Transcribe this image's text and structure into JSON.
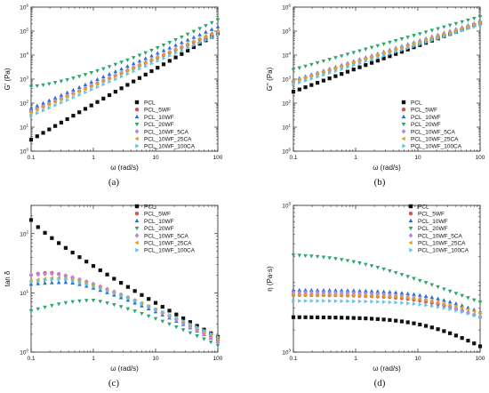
{
  "chart_data": [
    {
      "type": "scatter",
      "panel_label": "(a)",
      "xlabel": "ω (rad/s)",
      "ylabel": "G' (Pa)",
      "x_scale": "log",
      "y_scale": "log",
      "xlim": [
        0.1,
        100
      ],
      "ylim": [
        1,
        1000000
      ],
      "x_ticks": [
        {
          "v": 0.1,
          "t": "0.1"
        },
        {
          "v": 1,
          "t": "1"
        },
        {
          "v": 10,
          "t": "10"
        },
        {
          "v": 100,
          "t": "100"
        }
      ],
      "y_ticks": [
        {
          "v": 1,
          "base": "10",
          "exp": "0"
        },
        {
          "v": 10,
          "base": "10",
          "exp": "1"
        },
        {
          "v": 100,
          "base": "10",
          "exp": "2"
        },
        {
          "v": 1000,
          "base": "10",
          "exp": "3"
        },
        {
          "v": 10000,
          "base": "10",
          "exp": "4"
        },
        {
          "v": 100000,
          "base": "10",
          "exp": "5"
        },
        {
          "v": 1000000,
          "base": "10",
          "exp": "6"
        }
      ],
      "legend_position": "lower-right",
      "series": [
        {
          "name": "PCL",
          "color": "#111111",
          "marker": "square",
          "start": 3,
          "end": 80000,
          "power": 1.0
        },
        {
          "name": "PCL_5WF",
          "color": "#d9534f",
          "marker": "circle",
          "start": 45,
          "end": 90000,
          "power": 1.0
        },
        {
          "name": "PCL_10WF",
          "color": "#2c6fd6",
          "marker": "triangle-up",
          "start": 60,
          "end": 150000,
          "power": 1.0
        },
        {
          "name": "PCL_20WF",
          "color": "#2aa86b",
          "marker": "triangle-down",
          "start": 500,
          "end": 300000,
          "power": 1.4
        },
        {
          "name": "PCL_10WF_5CA",
          "color": "#b58ae0",
          "marker": "diamond",
          "start": 45,
          "end": 100000,
          "power": 1.0
        },
        {
          "name": "PCL_10WF_25CA",
          "color": "#e3a21a",
          "marker": "triangle-left",
          "start": 40,
          "end": 100000,
          "power": 1.0
        },
        {
          "name": "PCL_10WF_100CA",
          "color": "#5fc4e8",
          "marker": "triangle-right",
          "start": 30,
          "end": 70000,
          "power": 1.0
        }
      ]
    },
    {
      "type": "scatter",
      "panel_label": "(b)",
      "xlabel": "ω (rad/s)",
      "ylabel": "G'' (Pa)",
      "x_scale": "log",
      "y_scale": "log",
      "xlim": [
        0.1,
        100
      ],
      "ylim": [
        1,
        1000000
      ],
      "x_ticks": [
        {
          "v": 0.1,
          "t": "0.1"
        },
        {
          "v": 1,
          "t": "1"
        },
        {
          "v": 10,
          "t": "10"
        },
        {
          "v": 100,
          "t": "100"
        }
      ],
      "y_ticks": [
        {
          "v": 1,
          "base": "10",
          "exp": "0"
        },
        {
          "v": 10,
          "base": "10",
          "exp": "1"
        },
        {
          "v": 100,
          "base": "10",
          "exp": "2"
        },
        {
          "v": 1000,
          "base": "10",
          "exp": "3"
        },
        {
          "v": 10000,
          "base": "10",
          "exp": "4"
        },
        {
          "v": 100000,
          "base": "10",
          "exp": "5"
        },
        {
          "v": 1000000,
          "base": "10",
          "exp": "6"
        }
      ],
      "legend_position": "lower-right",
      "series": [
        {
          "name": "PCL",
          "color": "#111111",
          "marker": "square",
          "start": 300,
          "end": 220000,
          "power": 1.0
        },
        {
          "name": "PCL_5WF",
          "color": "#d9534f",
          "marker": "circle",
          "start": 800,
          "end": 220000,
          "power": 1.0
        },
        {
          "name": "PCL_10WF",
          "color": "#2c6fd6",
          "marker": "triangle-up",
          "start": 900,
          "end": 250000,
          "power": 1.0
        },
        {
          "name": "PCL_20WF",
          "color": "#2aa86b",
          "marker": "triangle-down",
          "start": 2500,
          "end": 400000,
          "power": 1.0
        },
        {
          "name": "PCL_10WF_5CA",
          "color": "#b58ae0",
          "marker": "diamond",
          "start": 800,
          "end": 230000,
          "power": 1.0
        },
        {
          "name": "PCL_10WF_25CA",
          "color": "#e3a21a",
          "marker": "triangle-left",
          "start": 800,
          "end": 220000,
          "power": 1.0
        },
        {
          "name": "PCL_10WF_100CA",
          "color": "#5fc4e8",
          "marker": "triangle-right",
          "start": 600,
          "end": 180000,
          "power": 1.0
        }
      ]
    },
    {
      "type": "scatter",
      "panel_label": "(c)",
      "xlabel": "ω (rad/s)",
      "ylabel": "tan δ",
      "x_scale": "log",
      "y_scale": "log",
      "xlim": [
        0.1,
        100
      ],
      "ylim": [
        1,
        300
      ],
      "x_ticks": [
        {
          "v": 0.1,
          "t": "0.1"
        },
        {
          "v": 1,
          "t": "1"
        },
        {
          "v": 10,
          "t": "10"
        },
        {
          "v": 100,
          "t": "100"
        }
      ],
      "y_ticks": [
        {
          "v": 1,
          "base": "10",
          "exp": "0"
        },
        {
          "v": 10,
          "base": "10",
          "exp": "1"
        },
        {
          "v": 100,
          "base": "10",
          "exp": "2"
        }
      ],
      "legend_position": "top-right",
      "series": [
        {
          "name": "PCL",
          "color": "#111111",
          "marker": "square",
          "peak": 170,
          "end": 1.8,
          "peak_x": 0.1
        },
        {
          "name": "PCL_5WF",
          "color": "#d9534f",
          "marker": "circle",
          "start": 20,
          "peak": 22,
          "end": 1.6,
          "peak_x": 0.2
        },
        {
          "name": "PCL_10WF",
          "color": "#2c6fd6",
          "marker": "triangle-up",
          "start": 14,
          "peak": 15,
          "end": 1.5,
          "peak_x": 0.4
        },
        {
          "name": "PCL_20WF",
          "color": "#2aa86b",
          "marker": "triangle-down",
          "start": 5,
          "peak": 7.5,
          "end": 1.3,
          "peak_x": 1.0
        },
        {
          "name": "PCL_10WF_5CA",
          "color": "#b58ae0",
          "marker": "diamond",
          "start": 20,
          "peak": 21,
          "end": 1.5,
          "peak_x": 0.25
        },
        {
          "name": "PCL_10WF_25CA",
          "color": "#e3a21a",
          "marker": "triangle-left",
          "start": 16,
          "peak": 18,
          "end": 1.7,
          "peak_x": 0.3
        },
        {
          "name": "PCL_10WF_100CA",
          "color": "#5fc4e8",
          "marker": "triangle-right",
          "start": 15,
          "peak": 17,
          "end": 1.8,
          "peak_x": 0.3
        }
      ]
    },
    {
      "type": "scatter",
      "panel_label": "(d)",
      "xlabel": "ω (rad/s)",
      "ylabel": "η (Pa·s)",
      "x_scale": "log",
      "y_scale": "log",
      "xlim": [
        0.1,
        100
      ],
      "ylim": [
        1000,
        100000
      ],
      "x_ticks": [
        {
          "v": 0.1,
          "t": "0.1"
        },
        {
          "v": 1,
          "t": "1"
        },
        {
          "v": 10,
          "t": "10"
        },
        {
          "v": 100,
          "t": "100"
        }
      ],
      "y_ticks": [
        {
          "v": 1000,
          "base": "10",
          "exp": "3"
        },
        {
          "v": 100000,
          "base": "10",
          "exp": "5"
        }
      ],
      "legend_position": "top-right",
      "series": [
        {
          "name": "PCL",
          "color": "#111111",
          "marker": "square",
          "start": 3000,
          "end": 1200,
          "knee": 20
        },
        {
          "name": "PCL_5WF",
          "color": "#d9534f",
          "marker": "circle",
          "start": 6000,
          "end": 3000,
          "knee": 20
        },
        {
          "name": "PCL_10WF",
          "color": "#2c6fd6",
          "marker": "triangle-up",
          "start": 7000,
          "end": 3500,
          "knee": 25
        },
        {
          "name": "PCL_20WF",
          "color": "#2aa86b",
          "marker": "triangle-down",
          "start": 22000,
          "end": 4800,
          "knee": 0.8
        },
        {
          "name": "PCL_10WF_5CA",
          "color": "#b58ae0",
          "marker": "diamond",
          "start": 6500,
          "end": 3000,
          "knee": 20
        },
        {
          "name": "PCL_10WF_25CA",
          "color": "#e3a21a",
          "marker": "triangle-left",
          "start": 6000,
          "end": 3400,
          "knee": 25
        },
        {
          "name": "PCL_10WF_100CA",
          "color": "#5fc4e8",
          "marker": "triangle-right",
          "start": 5000,
          "end": 3000,
          "knee": 30
        }
      ]
    }
  ]
}
